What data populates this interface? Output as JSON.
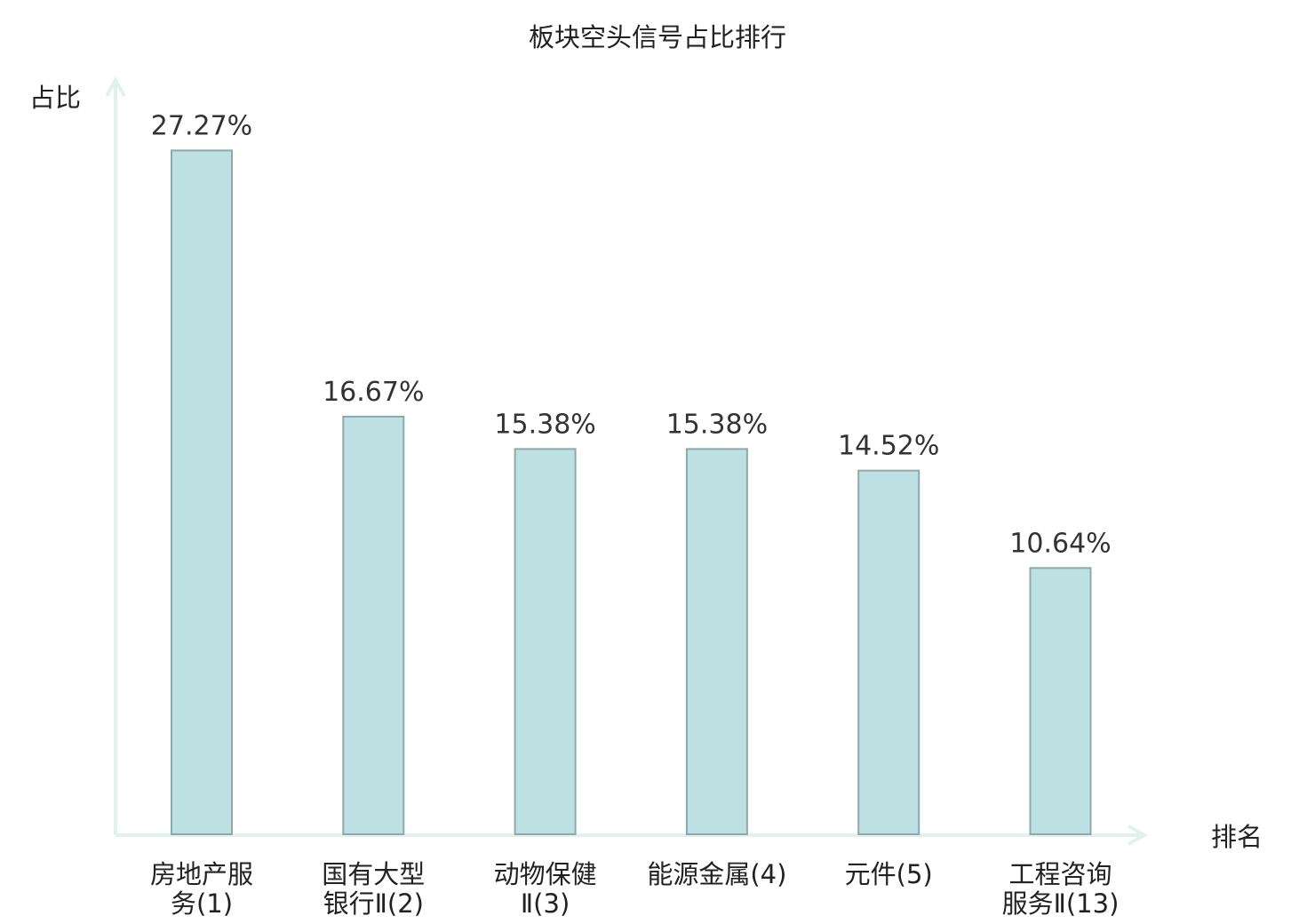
{
  "chart_data": {
    "type": "bar",
    "title": "板块空头信号占比排行",
    "ylabel": "占比",
    "xlabel": "排名",
    "categories": [
      {
        "lines": [
          "房地产服",
          "务(1)"
        ],
        "highlight": false
      },
      {
        "lines": [
          "国有大型",
          "银行Ⅱ(2)"
        ],
        "highlight": false
      },
      {
        "lines": [
          "动物保健",
          "Ⅱ(3)"
        ],
        "highlight": false
      },
      {
        "lines": [
          "能源金属(4)"
        ],
        "highlight": false
      },
      {
        "lines": [
          "元件(5)"
        ],
        "highlight": false
      },
      {
        "lines": [
          "工程咨询",
          "服务Ⅱ(13)"
        ],
        "highlight": true
      }
    ],
    "values": [
      27.27,
      16.67,
      15.38,
      15.38,
      14.52,
      10.64
    ],
    "value_labels": [
      "27.27%",
      "16.67%",
      "15.38%",
      "15.38%",
      "14.52%",
      "10.64%"
    ],
    "ylim": [
      0,
      30
    ],
    "grid": false,
    "colors": {
      "bar_fill": "#bde0e3",
      "bar_stroke": "#8ea9ab",
      "axis": "#dff2ef",
      "highlight_text": "#e0191d",
      "text": "#222222",
      "value_text": "#333333"
    }
  }
}
